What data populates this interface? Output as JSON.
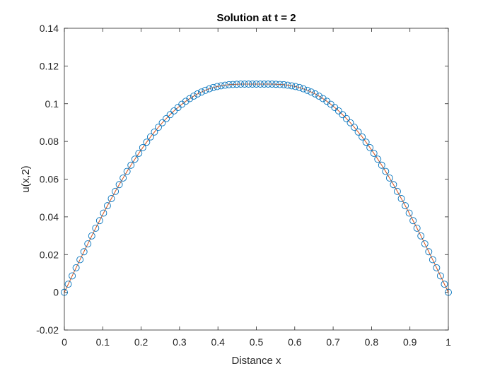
{
  "chart_data": {
    "type": "line",
    "title": "Solution at t = 2",
    "xlabel": "Distance x",
    "ylabel": "u(x,2)",
    "xlim": [
      0,
      1
    ],
    "ylim": [
      -0.02,
      0.14
    ],
    "xticks": [
      0,
      0.1,
      0.2,
      0.3,
      0.4,
      0.5,
      0.6,
      0.7,
      0.8,
      0.9,
      1
    ],
    "xtick_labels": [
      "0",
      "0.1",
      "0.2",
      "0.3",
      "0.4",
      "0.5",
      "0.6",
      "0.7",
      "0.8",
      "0.9",
      "1"
    ],
    "yticks": [
      -0.02,
      0,
      0.02,
      0.04,
      0.06,
      0.08,
      0.1,
      0.12,
      0.14
    ],
    "ytick_labels": [
      "-0.02",
      "0",
      "0.02",
      "0.04",
      "0.06",
      "0.08",
      "0.1",
      "0.12",
      "0.14"
    ],
    "grid": false,
    "box": true,
    "colors": {
      "marker": "#0072bd",
      "line": "#d95319",
      "axis": "#262626"
    },
    "series": [
      {
        "style": "markers-circle",
        "x": [
          0,
          0.0102,
          0.0204,
          0.0306,
          0.0408,
          0.051,
          0.0612,
          0.0714,
          0.0816,
          0.0918,
          0.102,
          0.1122,
          0.1224,
          0.1327,
          0.1429,
          0.1531,
          0.1633,
          0.1735,
          0.1837,
          0.1939,
          0.2041,
          0.2143,
          0.2245,
          0.2347,
          0.2449,
          0.2551,
          0.2653,
          0.2755,
          0.2857,
          0.2959,
          0.3061,
          0.3163,
          0.3265,
          0.3367,
          0.3469,
          0.3571,
          0.3673,
          0.3776,
          0.3878,
          0.398,
          0.4082,
          0.4184,
          0.4286,
          0.4388,
          0.449,
          0.4592,
          0.4694,
          0.4796,
          0.4898,
          0.5,
          0.5102,
          0.5204,
          0.5306,
          0.5408,
          0.551,
          0.5612,
          0.5714,
          0.5816,
          0.5918,
          0.602,
          0.6122,
          0.6224,
          0.6327,
          0.6429,
          0.6531,
          0.6633,
          0.6735,
          0.6837,
          0.6939,
          0.7041,
          0.7143,
          0.7245,
          0.7347,
          0.7449,
          0.7551,
          0.7653,
          0.7755,
          0.7857,
          0.7959,
          0.8061,
          0.8163,
          0.8265,
          0.8367,
          0.8469,
          0.8571,
          0.8673,
          0.8776,
          0.8878,
          0.898,
          0.9082,
          0.9184,
          0.9286,
          0.9388,
          0.949,
          0.9592,
          0.9694,
          0.9796,
          0.9898,
          1
        ],
        "y": [
          0,
          0.0043,
          0.0087,
          0.013,
          0.0173,
          0.0215,
          0.0257,
          0.0299,
          0.034,
          0.038,
          0.042,
          0.0459,
          0.0497,
          0.0535,
          0.0571,
          0.0606,
          0.0641,
          0.0674,
          0.0706,
          0.0737,
          0.0767,
          0.0796,
          0.0824,
          0.085,
          0.0875,
          0.0899,
          0.0921,
          0.0942,
          0.0962,
          0.098,
          0.0997,
          0.1013,
          0.1027,
          0.104,
          0.1052,
          0.1062,
          0.1071,
          0.1079,
          0.1086,
          0.1091,
          0.1095,
          0.1098,
          0.1101,
          0.1102,
          0.1103,
          0.1104,
          0.1104,
          0.1104,
          0.1104,
          0.1104,
          0.1104,
          0.1104,
          0.1104,
          0.1104,
          0.1103,
          0.1102,
          0.1101,
          0.1098,
          0.1095,
          0.1091,
          0.1086,
          0.1079,
          0.1071,
          0.1062,
          0.1052,
          0.104,
          0.1027,
          0.1013,
          0.0997,
          0.098,
          0.0962,
          0.0942,
          0.0921,
          0.0899,
          0.0875,
          0.085,
          0.0824,
          0.0796,
          0.0767,
          0.0737,
          0.0706,
          0.0674,
          0.0641,
          0.0606,
          0.0571,
          0.0535,
          0.0497,
          0.0459,
          0.042,
          0.038,
          0.034,
          0.0299,
          0.0257,
          0.0215,
          0.0173,
          0.013,
          0.0087,
          0.0043,
          0
        ]
      },
      {
        "style": "line",
        "x": [
          0,
          0.0102,
          0.0204,
          0.0306,
          0.0408,
          0.051,
          0.0612,
          0.0714,
          0.0816,
          0.0918,
          0.102,
          0.1122,
          0.1224,
          0.1327,
          0.1429,
          0.1531,
          0.1633,
          0.1735,
          0.1837,
          0.1939,
          0.2041,
          0.2143,
          0.2245,
          0.2347,
          0.2449,
          0.2551,
          0.2653,
          0.2755,
          0.2857,
          0.2959,
          0.3061,
          0.3163,
          0.3265,
          0.3367,
          0.3469,
          0.3571,
          0.3673,
          0.3776,
          0.3878,
          0.398,
          0.4082,
          0.4184,
          0.4286,
          0.4388,
          0.449,
          0.4592,
          0.4694,
          0.4796,
          0.4898,
          0.5,
          0.5102,
          0.5204,
          0.5306,
          0.5408,
          0.551,
          0.5612,
          0.5714,
          0.5816,
          0.5918,
          0.602,
          0.6122,
          0.6224,
          0.6327,
          0.6429,
          0.6531,
          0.6633,
          0.6735,
          0.6837,
          0.6939,
          0.7041,
          0.7143,
          0.7245,
          0.7347,
          0.7449,
          0.7551,
          0.7653,
          0.7755,
          0.7857,
          0.7959,
          0.8061,
          0.8163,
          0.8265,
          0.8367,
          0.8469,
          0.8571,
          0.8673,
          0.8776,
          0.8878,
          0.898,
          0.9082,
          0.9184,
          0.9286,
          0.9388,
          0.949,
          0.9592,
          0.9694,
          0.9796,
          0.9898,
          1
        ],
        "y": [
          0,
          0.0043,
          0.0087,
          0.013,
          0.0173,
          0.0215,
          0.0257,
          0.0299,
          0.034,
          0.038,
          0.042,
          0.0459,
          0.0497,
          0.0535,
          0.0571,
          0.0606,
          0.0641,
          0.0674,
          0.0706,
          0.0737,
          0.0767,
          0.0796,
          0.0824,
          0.085,
          0.0875,
          0.0899,
          0.0921,
          0.0942,
          0.0962,
          0.098,
          0.0997,
          0.1013,
          0.1027,
          0.104,
          0.1052,
          0.1062,
          0.1071,
          0.1079,
          0.1086,
          0.1091,
          0.1095,
          0.1098,
          0.1101,
          0.1102,
          0.1103,
          0.1104,
          0.1104,
          0.1104,
          0.1104,
          0.1104,
          0.1104,
          0.1104,
          0.1104,
          0.1104,
          0.1103,
          0.1102,
          0.1101,
          0.1098,
          0.1095,
          0.1091,
          0.1086,
          0.1079,
          0.1071,
          0.1062,
          0.1052,
          0.104,
          0.1027,
          0.1013,
          0.0997,
          0.098,
          0.0962,
          0.0942,
          0.0921,
          0.0899,
          0.0875,
          0.085,
          0.0824,
          0.0796,
          0.0767,
          0.0737,
          0.0706,
          0.0674,
          0.0641,
          0.0606,
          0.0571,
          0.0535,
          0.0497,
          0.0459,
          0.042,
          0.038,
          0.034,
          0.0299,
          0.0257,
          0.0215,
          0.0173,
          0.013,
          0.0087,
          0.0043,
          0
        ]
      }
    ]
  }
}
